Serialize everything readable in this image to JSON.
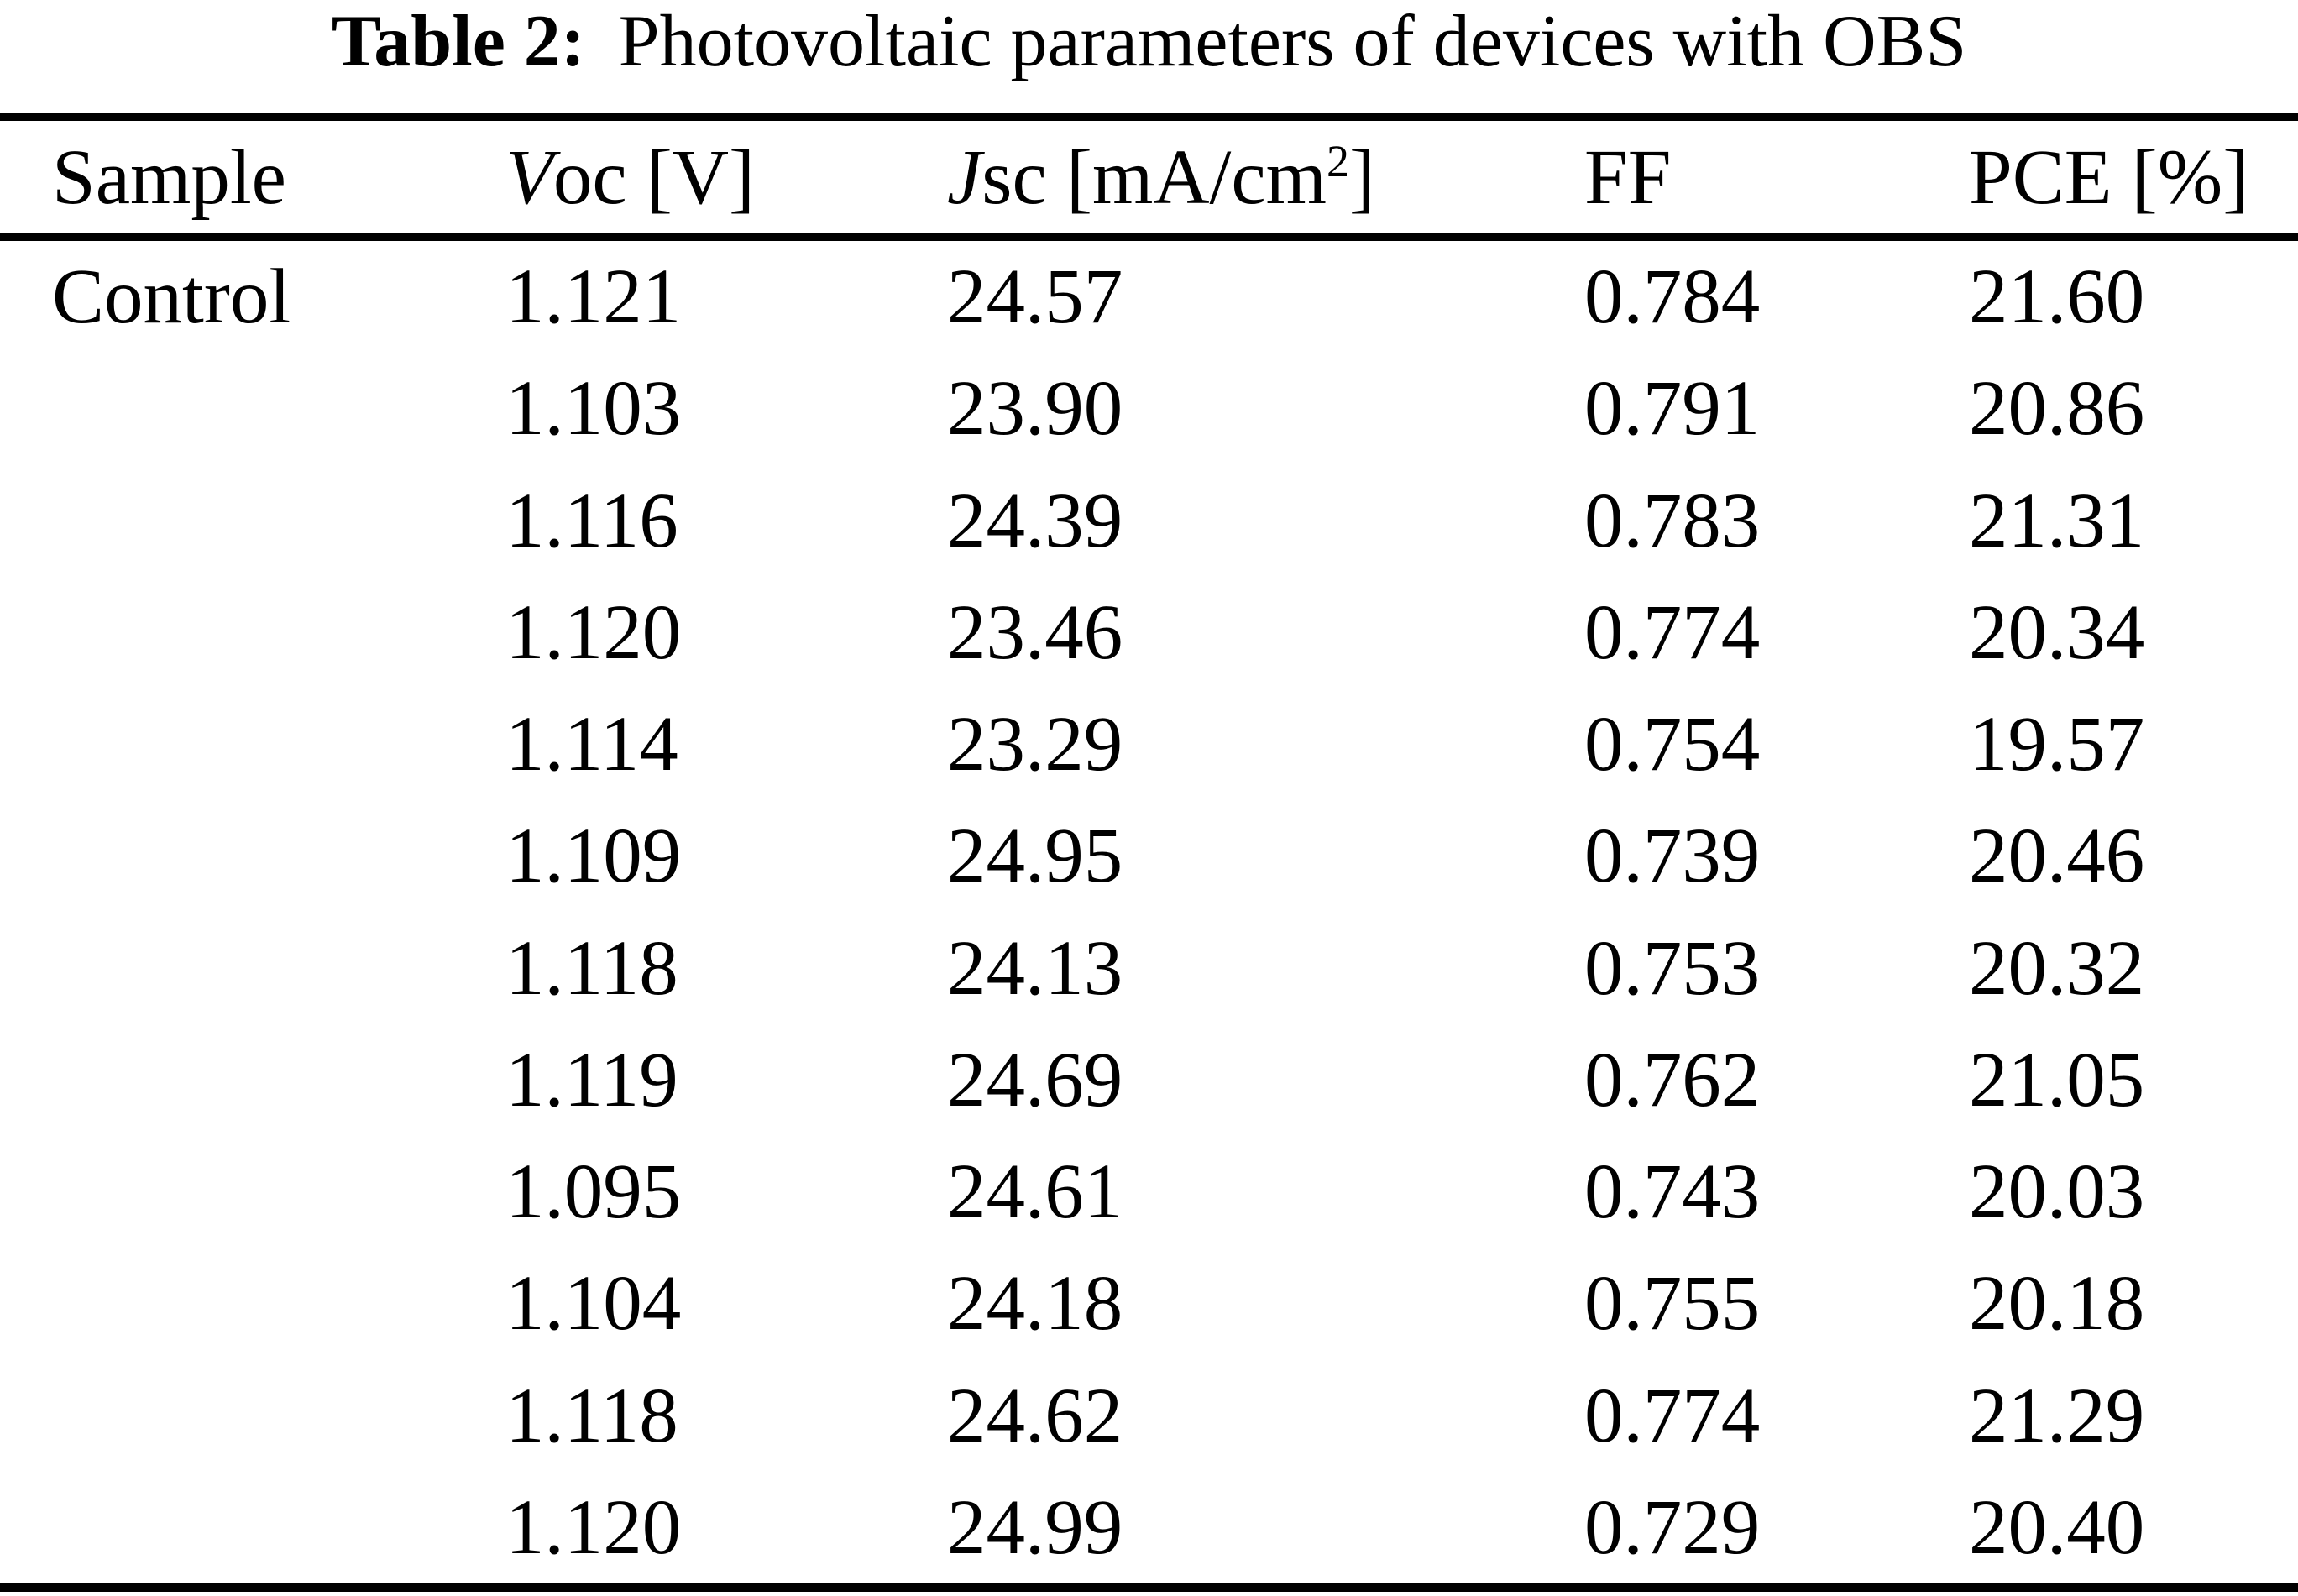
{
  "title": {
    "prefix": "Table 2:",
    "text": "Photovoltaic parameters of devices with OBS"
  },
  "colors": {
    "text": "#000000",
    "background": "#ffffff",
    "rule": "#000000"
  },
  "table": {
    "headers": {
      "sample": "Sample",
      "voc_it": "V",
      "voc_rest": "oc",
      "voc_unit": "[V]",
      "jsc_it": "J",
      "jsc_rest": "sc",
      "jsc_unit_pre": "[mA/cm",
      "jsc_sup": "2",
      "jsc_unit_post": "]",
      "ff": "FF",
      "pce": "PCE [%]"
    },
    "rows": [
      {
        "sample": "Control",
        "voc": "1.121",
        "jsc": "24.57",
        "ff": "0.784",
        "pce": "21.60"
      },
      {
        "sample": "",
        "voc": "1.103",
        "jsc": "23.90",
        "ff": "0.791",
        "pce": "20.86"
      },
      {
        "sample": "",
        "voc": "1.116",
        "jsc": "24.39",
        "ff": "0.783",
        "pce": "21.31"
      },
      {
        "sample": "",
        "voc": "1.120",
        "jsc": "23.46",
        "ff": "0.774",
        "pce": "20.34"
      },
      {
        "sample": "",
        "voc": "1.114",
        "jsc": "23.29",
        "ff": "0.754",
        "pce": "19.57"
      },
      {
        "sample": "",
        "voc": "1.109",
        "jsc": "24.95",
        "ff": "0.739",
        "pce": "20.46"
      },
      {
        "sample": "",
        "voc": "1.118",
        "jsc": "24.13",
        "ff": "0.753",
        "pce": "20.32"
      },
      {
        "sample": "",
        "voc": "1.119",
        "jsc": "24.69",
        "ff": "0.762",
        "pce": "21.05"
      },
      {
        "sample": "",
        "voc": "1.095",
        "jsc": "24.61",
        "ff": "0.743",
        "pce": "20.03"
      },
      {
        "sample": "",
        "voc": "1.104",
        "jsc": "24.18",
        "ff": "0.755",
        "pce": "20.18"
      },
      {
        "sample": "",
        "voc": "1.118",
        "jsc": "24.62",
        "ff": "0.774",
        "pce": "21.29"
      },
      {
        "sample": "",
        "voc": "1.120",
        "jsc": "24.99",
        "ff": "0.729",
        "pce": "20.40"
      }
    ]
  },
  "chart_data": {
    "type": "table",
    "title": "Table 2: Photovoltaic parameters of devices with OBS",
    "columns": [
      "Sample",
      "Voc [V]",
      "Jsc [mA/cm2]",
      "FF",
      "PCE [%]"
    ],
    "rows": [
      [
        "Control",
        "1.121",
        "24.57",
        "0.784",
        "21.60"
      ],
      [
        "",
        "1.103",
        "23.90",
        "0.791",
        "20.86"
      ],
      [
        "",
        "1.116",
        "24.39",
        "0.783",
        "21.31"
      ],
      [
        "",
        "1.120",
        "23.46",
        "0.774",
        "20.34"
      ],
      [
        "",
        "1.114",
        "23.29",
        "0.754",
        "19.57"
      ],
      [
        "",
        "1.109",
        "24.95",
        "0.739",
        "20.46"
      ],
      [
        "",
        "1.118",
        "24.13",
        "0.753",
        "20.32"
      ],
      [
        "",
        "1.119",
        "24.69",
        "0.762",
        "21.05"
      ],
      [
        "",
        "1.095",
        "24.61",
        "0.743",
        "20.03"
      ],
      [
        "",
        "1.104",
        "24.18",
        "0.755",
        "20.18"
      ],
      [
        "",
        "1.118",
        "24.62",
        "0.774",
        "21.29"
      ],
      [
        "",
        "1.120",
        "24.99",
        "0.729",
        "20.40"
      ]
    ]
  }
}
